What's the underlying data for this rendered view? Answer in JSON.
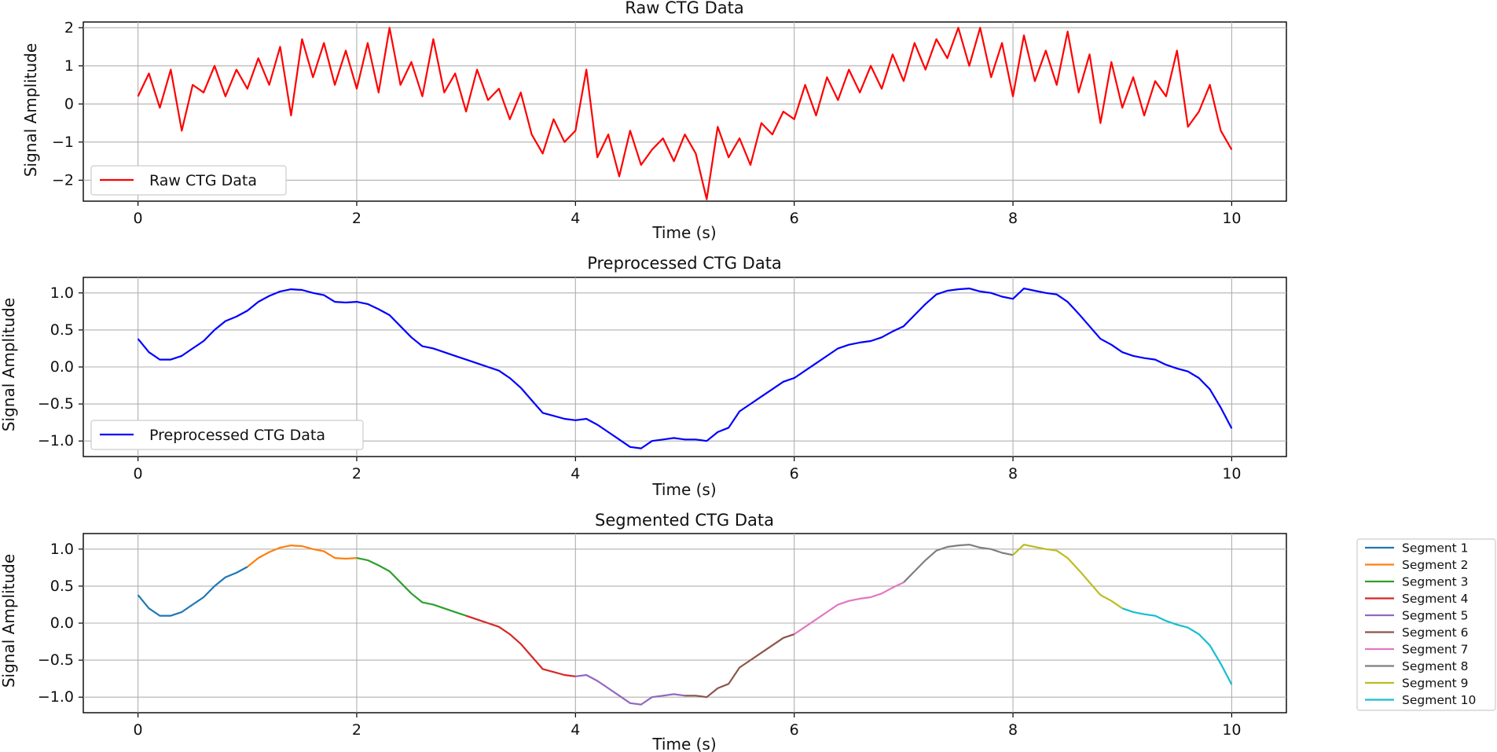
{
  "chart_data": [
    {
      "type": "line",
      "title": "Raw CTG Data",
      "xlabel": "Time (s)",
      "ylabel": "Signal Amplitude",
      "xlim": [
        -0.5,
        10.5
      ],
      "ylim": [
        -2.55,
        2.15
      ],
      "xticks": [
        0,
        2,
        4,
        6,
        8,
        10
      ],
      "yticks": [
        -2,
        -1,
        0,
        1,
        2
      ],
      "grid": true,
      "legend_position": "lower-left",
      "series": [
        {
          "name": "Raw CTG Data",
          "color": "#ff0000",
          "x": [
            0,
            0.1,
            0.2,
            0.3,
            0.4,
            0.5,
            0.6,
            0.7,
            0.8,
            0.9,
            1,
            1.1,
            1.2,
            1.3,
            1.4,
            1.5,
            1.6,
            1.7,
            1.8,
            1.9,
            2,
            2.1,
            2.2,
            2.3,
            2.4,
            2.5,
            2.6,
            2.7,
            2.8,
            2.9,
            3,
            3.1,
            3.2,
            3.3,
            3.4,
            3.5,
            3.6,
            3.7,
            3.8,
            3.9,
            4,
            4.1,
            4.2,
            4.3,
            4.4,
            4.5,
            4.6,
            4.7,
            4.8,
            4.9,
            5,
            5.1,
            5.2,
            5.3,
            5.4,
            5.5,
            5.6,
            5.7,
            5.8,
            5.9,
            6,
            6.1,
            6.2,
            6.3,
            6.4,
            6.5,
            6.6,
            6.7,
            6.8,
            6.9,
            7,
            7.1,
            7.2,
            7.3,
            7.4,
            7.5,
            7.6,
            7.7,
            7.8,
            7.9,
            8,
            8.1,
            8.2,
            8.3,
            8.4,
            8.5,
            8.6,
            8.7,
            8.8,
            8.9,
            9,
            9.1,
            9.2,
            9.3,
            9.4,
            9.5,
            9.6,
            9.7,
            9.8,
            9.9,
            10
          ],
          "y": [
            0.2,
            0.8,
            -0.1,
            0.9,
            -0.7,
            0.5,
            0.3,
            1.0,
            0.2,
            0.9,
            0.4,
            1.2,
            0.5,
            1.5,
            -0.3,
            1.7,
            0.7,
            1.6,
            0.5,
            1.4,
            0.4,
            1.6,
            0.3,
            2.0,
            0.5,
            1.1,
            0.2,
            1.7,
            0.3,
            0.8,
            -0.2,
            0.9,
            0.1,
            0.4,
            -0.4,
            0.3,
            -0.8,
            -1.3,
            -0.4,
            -1.0,
            -0.7,
            0.9,
            -1.4,
            -0.8,
            -1.9,
            -0.7,
            -1.6,
            -1.2,
            -0.9,
            -1.5,
            -0.8,
            -1.3,
            -2.5,
            -0.6,
            -1.4,
            -0.9,
            -1.6,
            -0.5,
            -0.8,
            -0.2,
            -0.4,
            0.5,
            -0.3,
            0.7,
            0.1,
            0.9,
            0.3,
            1.0,
            0.4,
            1.3,
            0.6,
            1.6,
            0.9,
            1.7,
            1.2,
            2.0,
            1.0,
            2.0,
            0.7,
            1.6,
            0.2,
            1.8,
            0.6,
            1.4,
            0.5,
            1.9,
            0.3,
            1.3,
            -0.5,
            1.1,
            -0.1,
            0.7,
            -0.3,
            0.6,
            0.2,
            1.4,
            -0.6,
            -0.2,
            0.5,
            -0.7,
            -1.2
          ]
        }
      ]
    },
    {
      "type": "line",
      "title": "Preprocessed CTG Data",
      "xlabel": "Time (s)",
      "ylabel": "Signal Amplitude",
      "xlim": [
        -0.5,
        10.5
      ],
      "ylim": [
        -1.21,
        1.21
      ],
      "xticks": [
        0,
        2,
        4,
        6,
        8,
        10
      ],
      "yticks": [
        -1.0,
        -0.5,
        0.0,
        0.5,
        1.0
      ],
      "grid": true,
      "legend_position": "lower-left",
      "series": [
        {
          "name": "Preprocessed CTG Data",
          "color": "#0000ff",
          "x": [
            0,
            0.1,
            0.2,
            0.3,
            0.4,
            0.5,
            0.6,
            0.7,
            0.8,
            0.9,
            1,
            1.1,
            1.2,
            1.3,
            1.4,
            1.5,
            1.6,
            1.7,
            1.8,
            1.9,
            2,
            2.1,
            2.2,
            2.3,
            2.4,
            2.5,
            2.6,
            2.7,
            2.8,
            2.9,
            3,
            3.1,
            3.2,
            3.3,
            3.4,
            3.5,
            3.6,
            3.7,
            3.8,
            3.9,
            4,
            4.1,
            4.2,
            4.3,
            4.4,
            4.5,
            4.6,
            4.7,
            4.8,
            4.9,
            5,
            5.1,
            5.2,
            5.3,
            5.4,
            5.5,
            5.6,
            5.7,
            5.8,
            5.9,
            6,
            6.1,
            6.2,
            6.3,
            6.4,
            6.5,
            6.6,
            6.7,
            6.8,
            6.9,
            7,
            7.1,
            7.2,
            7.3,
            7.4,
            7.5,
            7.6,
            7.7,
            7.8,
            7.9,
            8,
            8.1,
            8.2,
            8.3,
            8.4,
            8.5,
            8.6,
            8.7,
            8.8,
            8.9,
            9,
            9.1,
            9.2,
            9.3,
            9.4,
            9.5,
            9.6,
            9.7,
            9.8,
            9.9,
            10
          ],
          "y": [
            0.38,
            0.2,
            0.1,
            0.1,
            0.15,
            0.25,
            0.35,
            0.5,
            0.62,
            0.68,
            0.76,
            0.88,
            0.96,
            1.02,
            1.05,
            1.04,
            1.0,
            0.97,
            0.88,
            0.87,
            0.88,
            0.85,
            0.78,
            0.7,
            0.55,
            0.4,
            0.28,
            0.25,
            0.2,
            0.15,
            0.1,
            0.05,
            0.0,
            -0.05,
            -0.15,
            -0.28,
            -0.45,
            -0.62,
            -0.66,
            -0.7,
            -0.72,
            -0.7,
            -0.78,
            -0.88,
            -0.98,
            -1.08,
            -1.1,
            -1.0,
            -0.98,
            -0.96,
            -0.98,
            -0.98,
            -1.0,
            -0.88,
            -0.82,
            -0.6,
            -0.5,
            -0.4,
            -0.3,
            -0.2,
            -0.15,
            -0.05,
            0.05,
            0.15,
            0.25,
            0.3,
            0.33,
            0.35,
            0.4,
            0.48,
            0.55,
            0.7,
            0.85,
            0.98,
            1.03,
            1.05,
            1.06,
            1.02,
            1.0,
            0.95,
            0.92,
            1.06,
            1.03,
            1.0,
            0.98,
            0.88,
            0.72,
            0.55,
            0.38,
            0.3,
            0.2,
            0.15,
            0.12,
            0.1,
            0.03,
            -0.02,
            -0.06,
            -0.15,
            -0.3,
            -0.55,
            -0.83
          ]
        }
      ]
    },
    {
      "type": "line",
      "title": "Segmented CTG Data",
      "xlabel": "Time (s)",
      "ylabel": "Signal Amplitude",
      "xlim": [
        -0.5,
        10.5
      ],
      "ylim": [
        -1.21,
        1.21
      ],
      "xticks": [
        0,
        2,
        4,
        6,
        8,
        10
      ],
      "yticks": [
        -1.0,
        -0.5,
        0.0,
        0.5,
        1.0
      ],
      "grid": true,
      "legend_position": "outside-right",
      "segments": [
        {
          "name": "Segment 1",
          "color": "#1f77b4",
          "x_range": [
            0,
            1
          ]
        },
        {
          "name": "Segment 2",
          "color": "#ff7f0e",
          "x_range": [
            1,
            2
          ]
        },
        {
          "name": "Segment 3",
          "color": "#2ca02c",
          "x_range": [
            2,
            3
          ]
        },
        {
          "name": "Segment 4",
          "color": "#d62728",
          "x_range": [
            3,
            4
          ]
        },
        {
          "name": "Segment 5",
          "color": "#9467bd",
          "x_range": [
            4,
            5
          ]
        },
        {
          "name": "Segment 6",
          "color": "#8c564b",
          "x_range": [
            5,
            6
          ]
        },
        {
          "name": "Segment 7",
          "color": "#e377c2",
          "x_range": [
            6,
            7
          ]
        },
        {
          "name": "Segment 8",
          "color": "#7f7f7f",
          "x_range": [
            7,
            8
          ]
        },
        {
          "name": "Segment 9",
          "color": "#bcbd22",
          "x_range": [
            8,
            9
          ]
        },
        {
          "name": "Segment 10",
          "color": "#17becf",
          "x_range": [
            9,
            10
          ]
        }
      ],
      "data_source": "same values as Preprocessed CTG Data"
    }
  ]
}
